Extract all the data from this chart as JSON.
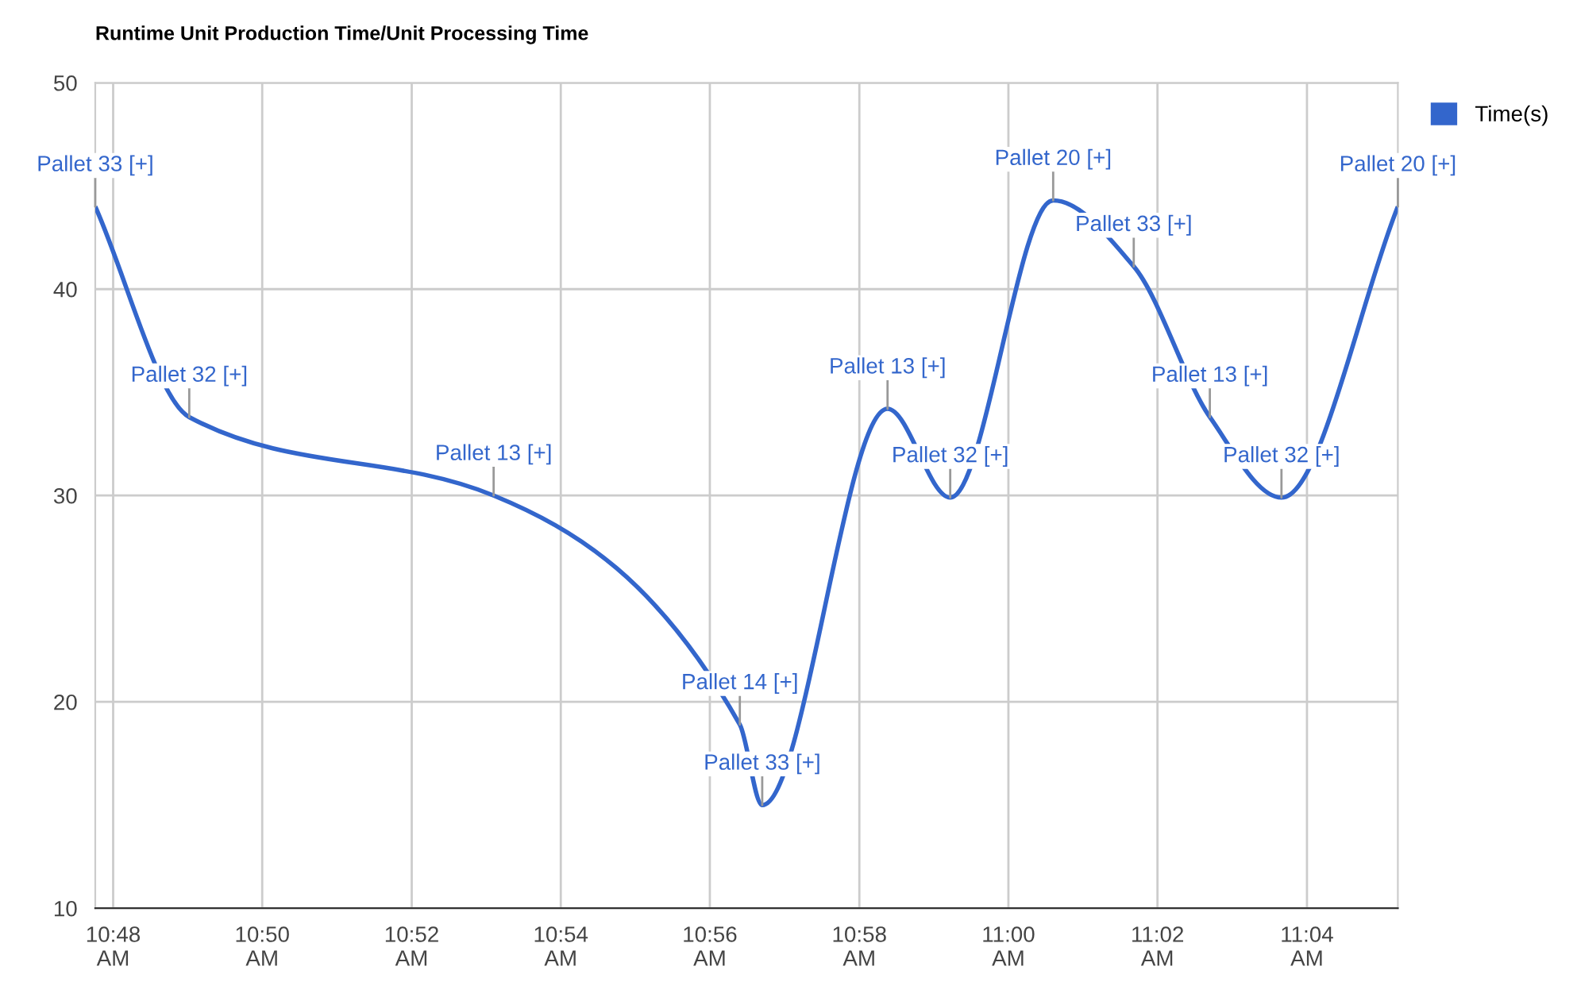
{
  "chart_data": {
    "type": "line",
    "title": "Runtime Unit Production Time/Unit Processing Time",
    "x": [
      10.796,
      10.817,
      10.885,
      10.94,
      10.945,
      10.973,
      10.987,
      11.01,
      11.028,
      11.045,
      11.061,
      11.087
    ],
    "series": [
      {
        "name": "Time(s)",
        "color": "#3366cc",
        "values": [
          44,
          33.8,
          30.0,
          18.9,
          15.0,
          34.2,
          29.9,
          44.3,
          41.1,
          33.8,
          29.9,
          44
        ]
      }
    ],
    "xlim": [
      10.796,
      11.087
    ],
    "xticks": [
      {
        "value": 10.8,
        "label": "10:48\nAM"
      },
      {
        "value": 10.8333,
        "label": "10:50\nAM"
      },
      {
        "value": 10.8667,
        "label": "10:52\nAM"
      },
      {
        "value": 10.9,
        "label": "10:54\nAM"
      },
      {
        "value": 10.9333,
        "label": "10:56\nAM"
      },
      {
        "value": 10.9667,
        "label": "10:58\nAM"
      },
      {
        "value": 11.0,
        "label": "11:00\nAM"
      },
      {
        "value": 11.0333,
        "label": "11:02\nAM"
      },
      {
        "value": 11.0667,
        "label": "11:04\nAM"
      }
    ],
    "ylim": [
      10,
      50
    ],
    "yticks": [
      10,
      20,
      30,
      40,
      50
    ],
    "grid": true,
    "legend": "top right",
    "marker": "none",
    "line_style": "solid",
    "annotations": [
      {
        "text": "Pallet 33 [+]",
        "x": 10.796,
        "y": 44
      },
      {
        "text": "Pallet 32 [+]",
        "x": 10.817,
        "y": 33.8
      },
      {
        "text": "Pallet 13 [+]",
        "x": 10.885,
        "y": 30.0
      },
      {
        "text": "Pallet 14 [+]",
        "x": 10.94,
        "y": 18.9
      },
      {
        "text": "Pallet 33 [+]",
        "x": 10.945,
        "y": 15.0
      },
      {
        "text": "Pallet 13 [+]",
        "x": 10.973,
        "y": 34.2
      },
      {
        "text": "Pallet 32 [+]",
        "x": 10.987,
        "y": 29.9
      },
      {
        "text": "Pallet 20 [+]",
        "x": 11.01,
        "y": 44.3
      },
      {
        "text": "Pallet 33 [+]",
        "x": 11.028,
        "y": 41.1
      },
      {
        "text": "Pallet 13 [+]",
        "x": 11.045,
        "y": 33.8
      },
      {
        "text": "Pallet 32 [+]",
        "x": 11.061,
        "y": 29.9
      },
      {
        "text": "Pallet 20 [+]",
        "x": 11.087,
        "y": 44
      }
    ]
  }
}
